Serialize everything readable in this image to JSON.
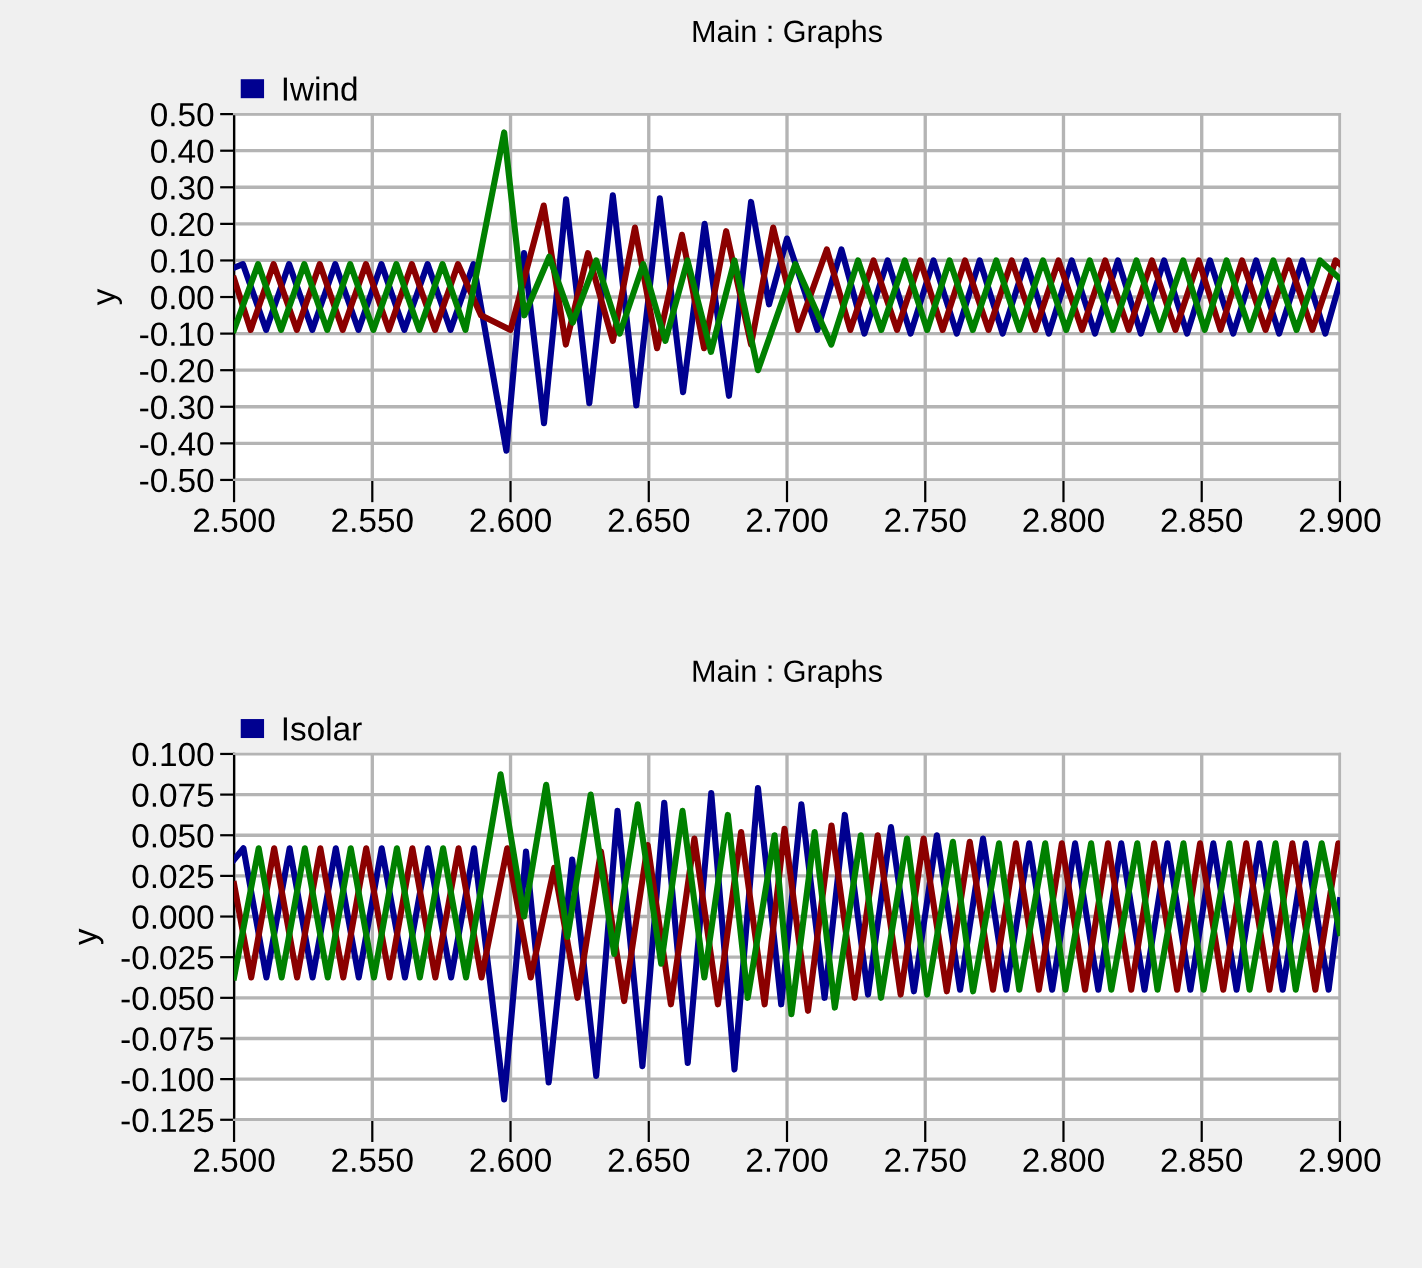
{
  "chart_data": [
    {
      "type": "line",
      "title": "Main : Graphs",
      "ylabel": "y",
      "legend": "top left",
      "grid": true,
      "marker": "none",
      "line_style": "solid",
      "xlim": [
        2.5,
        2.9
      ],
      "xticks": [
        {
          "value": 2.5,
          "label": "2.500"
        },
        {
          "value": 2.55,
          "label": "2.550"
        },
        {
          "value": 2.6,
          "label": "2.600"
        },
        {
          "value": 2.65,
          "label": "2.650"
        },
        {
          "value": 2.7,
          "label": "2.700"
        },
        {
          "value": 2.75,
          "label": "2.750"
        },
        {
          "value": 2.8,
          "label": "2.800"
        },
        {
          "value": 2.85,
          "label": "2.850"
        },
        {
          "value": 2.9,
          "label": "2.900"
        }
      ],
      "ylim": [
        -0.5,
        0.5
      ],
      "yticks": [
        {
          "value": 0.5,
          "label": "0.50"
        },
        {
          "value": 0.4,
          "label": "0.40"
        },
        {
          "value": 0.3,
          "label": "0.30"
        },
        {
          "value": 0.2,
          "label": "0.20"
        },
        {
          "value": 0.1,
          "label": "0.10"
        },
        {
          "value": 0,
          "label": "0.00"
        },
        {
          "value": -0.1,
          "label": "-0.10"
        },
        {
          "value": -0.2,
          "label": "-0.20"
        },
        {
          "value": -0.3,
          "label": "-0.30"
        },
        {
          "value": -0.4,
          "label": "-0.40"
        },
        {
          "value": -0.5,
          "label": "-0.50"
        }
      ],
      "series": [
        {
          "name": "Iwind",
          "color": "#000090",
          "x": [
            2.5,
            2.5032,
            2.5116,
            2.5199,
            2.5283,
            2.5366,
            2.545,
            2.5533,
            2.5616,
            2.57,
            2.5783,
            2.5866,
            2.5985,
            2.6049,
            2.6121,
            2.6201,
            2.6285,
            2.637,
            2.6455,
            2.654,
            2.6624,
            2.6702,
            2.679,
            2.687,
            2.6935,
            2.7,
            2.711,
            2.7197,
            2.728,
            2.7364,
            2.7447,
            2.753,
            2.7614,
            2.7697,
            2.778,
            2.7864,
            2.7947,
            2.803,
            2.8114,
            2.8197,
            2.828,
            2.8364,
            2.8447,
            2.853,
            2.8614,
            2.8697,
            2.878,
            2.8864,
            2.8947,
            2.9
          ],
          "values": [
            0.08,
            0.09,
            -0.09,
            0.09,
            -0.09,
            0.09,
            -0.09,
            0.09,
            -0.09,
            0.09,
            -0.09,
            0.09,
            -0.42,
            0.12,
            -0.345,
            0.267,
            -0.29,
            0.278,
            -0.296,
            0.27,
            -0.26,
            0.2,
            -0.27,
            0.26,
            -0.02,
            0.16,
            -0.09,
            0.13,
            -0.1,
            0.1,
            -0.1,
            0.1,
            -0.1,
            0.1,
            -0.1,
            0.1,
            -0.1,
            0.1,
            -0.1,
            0.1,
            -0.1,
            0.1,
            -0.1,
            0.1,
            -0.1,
            0.1,
            -0.1,
            0.1,
            -0.1,
            0.04
          ]
        },
        {
          "color": "#8b0000",
          "x": [
            2.5,
            2.506,
            2.5143,
            2.5227,
            2.531,
            2.5393,
            2.5477,
            2.556,
            2.5643,
            2.5727,
            2.581,
            2.5893,
            2.6,
            2.612,
            2.62,
            2.628,
            2.637,
            2.645,
            2.653,
            2.662,
            2.67,
            2.678,
            2.687,
            2.695,
            2.704,
            2.7144,
            2.7229,
            2.7313,
            2.7398,
            2.7482,
            2.7563,
            2.7644,
            2.7729,
            2.7813,
            2.7898,
            2.7982,
            2.8067,
            2.8151,
            2.8236,
            2.832,
            2.8405,
            2.8489,
            2.8568,
            2.8646,
            2.8731,
            2.8815,
            2.89,
            2.8984,
            2.9
          ],
          "values": [
            0.05,
            -0.09,
            0.09,
            -0.09,
            0.09,
            -0.09,
            0.09,
            -0.09,
            0.09,
            -0.09,
            0.09,
            -0.05,
            -0.09,
            0.25,
            -0.13,
            0.12,
            -0.12,
            0.19,
            -0.14,
            0.17,
            -0.14,
            0.18,
            -0.13,
            0.19,
            -0.09,
            0.13,
            -0.09,
            0.1,
            -0.09,
            0.1,
            -0.09,
            0.1,
            -0.09,
            0.1,
            -0.09,
            0.1,
            -0.09,
            0.1,
            -0.09,
            0.1,
            -0.09,
            0.1,
            -0.09,
            0.1,
            -0.09,
            0.1,
            -0.09,
            0.1,
            0.09
          ]
        },
        {
          "color": "#008000",
          "x": [
            2.5,
            2.5087,
            2.517,
            2.5254,
            2.5337,
            2.542,
            2.5504,
            2.5587,
            2.567,
            2.5754,
            2.5837,
            2.5977,
            2.605,
            2.614,
            2.6225,
            2.631,
            2.6395,
            2.648,
            2.656,
            2.664,
            2.6725,
            2.681,
            2.6895,
            2.703,
            2.716,
            2.7257,
            2.7341,
            2.7426,
            2.7507,
            2.7588,
            2.7672,
            2.7757,
            2.7841,
            2.7926,
            2.801,
            2.8095,
            2.8179,
            2.8264,
            2.8348,
            2.8433,
            2.8511,
            2.859,
            2.8674,
            2.8759,
            2.8843,
            2.8928,
            2.9
          ],
          "values": [
            -0.09,
            0.09,
            -0.09,
            0.09,
            -0.09,
            0.09,
            -0.09,
            0.09,
            -0.09,
            0.09,
            -0.09,
            0.45,
            -0.05,
            0.11,
            -0.07,
            0.1,
            -0.1,
            0.09,
            -0.12,
            0.1,
            -0.15,
            0.1,
            -0.2,
            0.09,
            -0.13,
            0.1,
            -0.09,
            0.1,
            -0.09,
            0.1,
            -0.09,
            0.1,
            -0.09,
            0.1,
            -0.09,
            0.1,
            -0.09,
            0.1,
            -0.09,
            0.1,
            -0.09,
            0.1,
            -0.09,
            0.1,
            -0.09,
            0.1,
            0.05
          ]
        }
      ]
    },
    {
      "type": "line",
      "title": "Main : Graphs",
      "ylabel": "y",
      "legend": "top left",
      "grid": true,
      "marker": "none",
      "line_style": "solid",
      "xlim": [
        2.5,
        2.9
      ],
      "xticks": [
        {
          "value": 2.5,
          "label": "2.500"
        },
        {
          "value": 2.55,
          "label": "2.550"
        },
        {
          "value": 2.6,
          "label": "2.600"
        },
        {
          "value": 2.65,
          "label": "2.650"
        },
        {
          "value": 2.7,
          "label": "2.700"
        },
        {
          "value": 2.75,
          "label": "2.750"
        },
        {
          "value": 2.8,
          "label": "2.800"
        },
        {
          "value": 2.85,
          "label": "2.850"
        },
        {
          "value": 2.9,
          "label": "2.900"
        }
      ],
      "ylim": [
        -0.125,
        0.1
      ],
      "yticks": [
        {
          "value": 0.1,
          "label": "0.100"
        },
        {
          "value": 0.075,
          "label": "0.075"
        },
        {
          "value": 0.05,
          "label": "0.050"
        },
        {
          "value": 0.025,
          "label": "0.025"
        },
        {
          "value": 0,
          "label": "0.000"
        },
        {
          "value": -0.025,
          "label": "-0.025"
        },
        {
          "value": -0.05,
          "label": "-0.050"
        },
        {
          "value": -0.075,
          "label": "-0.075"
        },
        {
          "value": -0.1,
          "label": "-0.100"
        },
        {
          "value": -0.125,
          "label": "-0.125"
        }
      ],
      "series": [
        {
          "name": "Isolar",
          "color": "#000090",
          "x": [
            2.5,
            2.5034,
            2.5117,
            2.5201,
            2.5284,
            2.5368,
            2.5451,
            2.5534,
            2.5618,
            2.5701,
            2.5785,
            2.5868,
            2.5977,
            2.6056,
            2.6138,
            2.6223,
            2.631,
            2.6387,
            2.6477,
            2.6556,
            2.6641,
            2.6726,
            2.681,
            2.6895,
            2.6979,
            2.7052,
            2.7136,
            2.7209,
            2.7293,
            2.7376,
            2.7459,
            2.7542,
            2.7626,
            2.7709,
            2.7793,
            2.7876,
            2.7959,
            2.8042,
            2.8126,
            2.8209,
            2.8293,
            2.8376,
            2.8459,
            2.8542,
            2.8626,
            2.8709,
            2.8793,
            2.8876,
            2.8959,
            2.9
          ],
          "values": [
            0.035,
            0.042,
            -0.0375,
            0.042,
            -0.0375,
            0.042,
            -0.0375,
            0.042,
            -0.0375,
            0.042,
            -0.0375,
            0.042,
            -0.1125,
            0.04,
            -0.102,
            0.035,
            -0.098,
            0.065,
            -0.092,
            0.07,
            -0.09,
            0.076,
            -0.094,
            0.079,
            -0.054,
            0.069,
            -0.05,
            0.0625,
            -0.048,
            0.055,
            -0.046,
            0.05,
            -0.045,
            0.048,
            -0.045,
            0.045,
            -0.045,
            0.045,
            -0.045,
            0.045,
            -0.045,
            0.045,
            -0.045,
            0.045,
            -0.045,
            0.045,
            -0.045,
            0.045,
            -0.045,
            0.01
          ]
        },
        {
          "color": "#8b0000",
          "x": [
            2.5,
            2.5062,
            2.5145,
            2.5228,
            2.5312,
            2.5395,
            2.5478,
            2.5562,
            2.5645,
            2.5728,
            2.5812,
            2.5895,
            2.5988,
            2.6073,
            2.6158,
            2.6242,
            2.6327,
            2.6411,
            2.6496,
            2.658,
            2.6665,
            2.675,
            2.6834,
            2.6919,
            2.6991,
            2.7076,
            2.7161,
            2.7245,
            2.7328,
            2.7411,
            2.7494,
            2.7578,
            2.7661,
            2.7745,
            2.7828,
            2.7911,
            2.7994,
            2.8078,
            2.8161,
            2.8245,
            2.8328,
            2.8411,
            2.8494,
            2.8578,
            2.8661,
            2.8745,
            2.8828,
            2.8911,
            2.8994,
            2.9
          ],
          "values": [
            0.02,
            -0.0375,
            0.042,
            -0.0375,
            0.042,
            -0.0375,
            0.042,
            -0.0375,
            0.042,
            -0.0375,
            0.042,
            -0.0375,
            0.042,
            -0.0375,
            0.03,
            -0.05,
            0.04,
            -0.052,
            0.044,
            -0.054,
            0.048,
            -0.054,
            0.052,
            -0.054,
            0.054,
            -0.058,
            0.056,
            -0.05,
            0.05,
            -0.048,
            0.048,
            -0.046,
            0.046,
            -0.045,
            0.045,
            -0.045,
            0.045,
            -0.045,
            0.045,
            -0.045,
            0.045,
            -0.045,
            0.045,
            -0.045,
            0.045,
            -0.045,
            0.045,
            -0.045,
            0.045,
            0.04
          ]
        },
        {
          "color": "#008000",
          "x": [
            2.5,
            2.5089,
            2.5172,
            2.5256,
            2.5339,
            2.5422,
            2.5506,
            2.5589,
            2.5672,
            2.5756,
            2.5839,
            2.5964,
            2.6049,
            2.6129,
            2.6206,
            2.629,
            2.6375,
            2.646,
            2.6545,
            2.6622,
            2.6701,
            2.6786,
            2.6858,
            2.6955,
            2.7016,
            2.71,
            2.7173,
            2.7267,
            2.734,
            2.7434,
            2.7507,
            2.76,
            2.7673,
            2.7767,
            2.784,
            2.7934,
            2.8007,
            2.81,
            2.8173,
            2.8267,
            2.834,
            2.8434,
            2.8507,
            2.86,
            2.8673,
            2.8767,
            2.884,
            2.8934,
            2.9
          ],
          "values": [
            -0.0375,
            0.042,
            -0.0375,
            0.042,
            -0.0375,
            0.042,
            -0.0375,
            0.042,
            -0.0375,
            0.042,
            -0.0375,
            0.0875,
            0.0,
            0.081,
            -0.0125,
            0.075,
            -0.023,
            0.069,
            -0.029,
            0.065,
            -0.0375,
            0.0625,
            -0.05,
            0.05,
            -0.06,
            0.052,
            -0.056,
            0.05,
            -0.05,
            0.048,
            -0.048,
            0.046,
            -0.046,
            0.045,
            -0.045,
            0.045,
            -0.045,
            0.045,
            -0.045,
            0.045,
            -0.045,
            0.045,
            -0.045,
            0.045,
            -0.045,
            0.045,
            -0.045,
            0.045,
            -0.01
          ]
        }
      ]
    }
  ]
}
